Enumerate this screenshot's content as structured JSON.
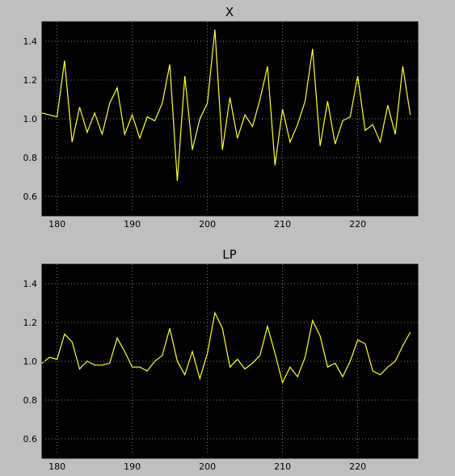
{
  "figure": {
    "background": "#bfbfbf"
  },
  "chart_data": [
    {
      "type": "line",
      "title": "X",
      "xlabel": "",
      "ylabel": "",
      "xlim": [
        178,
        228
      ],
      "ylim": [
        0.5,
        1.5
      ],
      "xticks": [
        180,
        190,
        200,
        210,
        220
      ],
      "yticks": [
        0.6,
        0.8,
        1.0,
        1.2,
        1.4
      ],
      "xtick_labels": [
        "180",
        "190",
        "200",
        "210",
        "220"
      ],
      "ytick_labels": [
        "0.6",
        "0.8",
        "1.0",
        "1.2",
        "1.4"
      ],
      "grid": true,
      "legend": "none",
      "plot_background": "#000000",
      "line_color": "#ffff33",
      "grid_color": "#808080",
      "x": [
        178,
        179,
        180,
        181,
        182,
        183,
        184,
        185,
        186,
        187,
        188,
        189,
        190,
        191,
        192,
        193,
        194,
        195,
        196,
        197,
        198,
        199,
        200,
        201,
        202,
        203,
        204,
        205,
        206,
        207,
        208,
        209,
        210,
        211,
        212,
        213,
        214,
        215,
        216,
        217,
        218,
        219,
        220,
        221,
        222,
        223,
        224,
        225,
        226,
        227
      ],
      "y": [
        1.03,
        1.02,
        1.01,
        1.3,
        0.88,
        1.06,
        0.93,
        1.03,
        0.92,
        1.08,
        1.16,
        0.92,
        1.02,
        0.9,
        1.01,
        0.99,
        1.08,
        1.28,
        0.68,
        1.22,
        0.84,
        1.0,
        1.08,
        1.46,
        0.84,
        1.11,
        0.9,
        1.02,
        0.96,
        1.1,
        1.27,
        0.76,
        1.05,
        0.88,
        0.97,
        1.09,
        1.36,
        0.86,
        1.09,
        0.87,
        0.99,
        1.01,
        1.22,
        0.94,
        0.97,
        0.88,
        1.07,
        0.92,
        1.27,
        1.02
      ]
    },
    {
      "type": "line",
      "title": "LP",
      "xlabel": "",
      "ylabel": "",
      "xlim": [
        178,
        228
      ],
      "ylim": [
        0.5,
        1.5
      ],
      "xticks": [
        180,
        190,
        200,
        210,
        220
      ],
      "yticks": [
        0.6,
        0.8,
        1.0,
        1.2,
        1.4
      ],
      "xtick_labels": [
        "180",
        "190",
        "200",
        "210",
        "220"
      ],
      "ytick_labels": [
        "0.6",
        "0.8",
        "1.0",
        "1.2",
        "1.4"
      ],
      "grid": true,
      "legend": "none",
      "plot_background": "#000000",
      "line_color": "#ffff33",
      "grid_color": "#808080",
      "x": [
        178,
        179,
        180,
        181,
        182,
        183,
        184,
        185,
        186,
        187,
        188,
        189,
        190,
        191,
        192,
        193,
        194,
        195,
        196,
        197,
        198,
        199,
        200,
        201,
        202,
        203,
        204,
        205,
        206,
        207,
        208,
        209,
        210,
        211,
        212,
        213,
        214,
        215,
        216,
        217,
        218,
        219,
        220,
        221,
        222,
        223,
        224,
        225,
        226,
        227
      ],
      "y": [
        0.99,
        1.02,
        1.01,
        1.14,
        1.1,
        0.96,
        1.0,
        0.98,
        0.98,
        0.99,
        1.12,
        1.05,
        0.97,
        0.97,
        0.95,
        1.0,
        1.03,
        1.17,
        1.0,
        0.93,
        1.05,
        0.91,
        1.04,
        1.25,
        1.17,
        0.97,
        1.01,
        0.96,
        0.99,
        1.03,
        1.18,
        1.04,
        0.89,
        0.97,
        0.92,
        1.02,
        1.21,
        1.13,
        0.97,
        0.99,
        0.92,
        1.0,
        1.11,
        1.09,
        0.95,
        0.93,
        0.97,
        1.0,
        1.08,
        1.15
      ]
    }
  ]
}
